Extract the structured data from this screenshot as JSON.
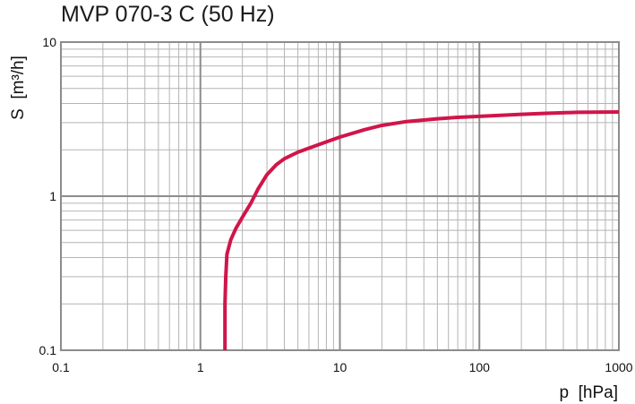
{
  "chart_data": {
    "type": "line",
    "title": "MVP 070-3 C (50 Hz)",
    "xlabel": "p  [hPa]",
    "ylabel": "S  [m³/h]",
    "xscale": "log",
    "yscale": "log",
    "xlim": [
      0.1,
      1000
    ],
    "ylim": [
      0.1,
      10
    ],
    "grid": true,
    "x_ticks": [
      0.1,
      1,
      10,
      100,
      1000
    ],
    "x_tick_labels": [
      "0.1",
      "1",
      "10",
      "100",
      "1000"
    ],
    "y_ticks": [
      0.1,
      1,
      10
    ],
    "y_tick_labels": [
      "0.1",
      "1",
      "10"
    ],
    "series": [
      {
        "color": "#d0154a",
        "points": [
          [
            1.5,
            0.1
          ],
          [
            1.5,
            0.2
          ],
          [
            1.52,
            0.3
          ],
          [
            1.55,
            0.42
          ],
          [
            1.65,
            0.52
          ],
          [
            1.8,
            0.62
          ],
          [
            2.0,
            0.73
          ],
          [
            2.3,
            0.9
          ],
          [
            2.6,
            1.12
          ],
          [
            3.0,
            1.38
          ],
          [
            3.5,
            1.6
          ],
          [
            4.0,
            1.75
          ],
          [
            5.0,
            1.93
          ],
          [
            6.0,
            2.05
          ],
          [
            8.0,
            2.25
          ],
          [
            10,
            2.42
          ],
          [
            15,
            2.7
          ],
          [
            20,
            2.88
          ],
          [
            30,
            3.05
          ],
          [
            50,
            3.18
          ],
          [
            70,
            3.25
          ],
          [
            100,
            3.3
          ],
          [
            200,
            3.4
          ],
          [
            300,
            3.45
          ],
          [
            500,
            3.5
          ],
          [
            1000,
            3.52
          ]
        ]
      }
    ]
  }
}
